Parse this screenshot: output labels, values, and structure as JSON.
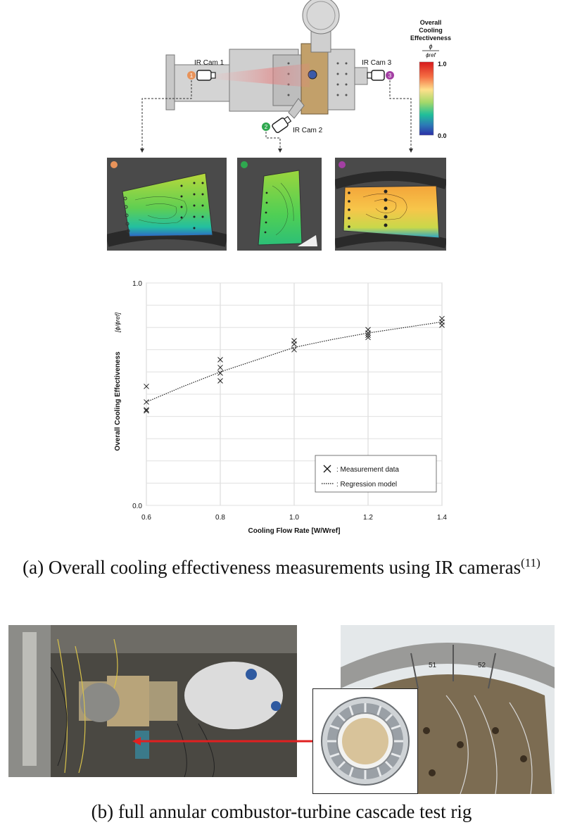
{
  "rig": {
    "cam1": "IR Cam 1",
    "cam2": "IR Cam 2",
    "cam3": "IR Cam 3",
    "badge1": "1",
    "badge2": "2",
    "badge3": "3"
  },
  "colorbar": {
    "title_line1": "Overall",
    "title_line2": "Cooling",
    "title_line3": "Effectiveness",
    "frac_num": "ϕ",
    "frac_den": "ϕref",
    "max_label": "1.0",
    "min_label": "0.0"
  },
  "chart_data": {
    "type": "scatter",
    "xlabel": "Cooling Flow Rate [W/Wref]",
    "ylabel": "Overall Cooling Effectiveness",
    "ylabel_frac": "[ϕ/ϕref]",
    "xlim": [
      0.6,
      1.4
    ],
    "ylim": [
      0.0,
      1.0
    ],
    "xticks": [
      "0.6",
      "0.8",
      "1.0",
      "1.2",
      "1.4"
    ],
    "yticks": [
      "0.0",
      "1.0"
    ],
    "grid": true,
    "legend_position": "bottom-right",
    "series": [
      {
        "name": "Measurement data",
        "marker": "x",
        "points": [
          [
            0.6,
            0.535
          ],
          [
            0.6,
            0.465
          ],
          [
            0.6,
            0.43
          ],
          [
            0.6,
            0.425
          ],
          [
            0.8,
            0.655
          ],
          [
            0.8,
            0.62
          ],
          [
            0.8,
            0.595
          ],
          [
            0.8,
            0.56
          ],
          [
            1.0,
            0.74
          ],
          [
            1.0,
            0.725
          ],
          [
            1.0,
            0.7
          ],
          [
            1.2,
            0.79
          ],
          [
            1.2,
            0.775
          ],
          [
            1.2,
            0.765
          ],
          [
            1.2,
            0.755
          ],
          [
            1.4,
            0.84
          ],
          [
            1.4,
            0.825
          ],
          [
            1.4,
            0.81
          ]
        ]
      },
      {
        "name": "Regression model",
        "style": "dotted",
        "points": [
          [
            0.6,
            0.465
          ],
          [
            0.7,
            0.535
          ],
          [
            0.8,
            0.6
          ],
          [
            0.9,
            0.655
          ],
          [
            1.0,
            0.71
          ],
          [
            1.1,
            0.745
          ],
          [
            1.2,
            0.775
          ],
          [
            1.3,
            0.8
          ],
          [
            1.4,
            0.825
          ]
        ]
      }
    ],
    "legend": [
      ": Measurement data",
      ": Regression model"
    ]
  },
  "captions": {
    "a": "(a) Overall cooling effectiveness measurements using IR cameras",
    "a_ref": "(11)",
    "b": "(b) full annular combustor-turbine cascade test rig"
  },
  "photo": {
    "labels": [
      "51",
      "52"
    ]
  },
  "colors": {
    "thumb_bg": "#4a4a4a",
    "arrow_red": "#e02020",
    "badge1": "#e8935a",
    "badge2": "#2fa84f",
    "badge3": "#a33fa3"
  }
}
